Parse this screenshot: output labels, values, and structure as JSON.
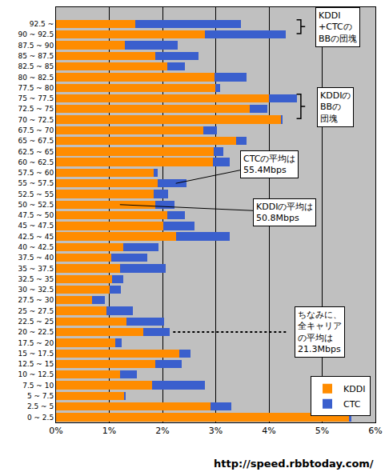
{
  "chart_data": {
    "type": "bar",
    "orientation": "horizontal",
    "stacked": true,
    "categories": [
      "0 ~ 2.5",
      "2.5 ~ 5",
      "5 ~ 7.5",
      "7.5 ~ 10",
      "10 ~ 12.5",
      "12.5 ~ 15",
      "15 ~ 17.5",
      "17.5 ~ 20",
      "20 ~ 22.5",
      "22.5 ~ 25",
      "25 ~ 27.5",
      "27.5 ~ 30",
      "30 ~ 32.5",
      "32.5 ~ 35",
      "35 ~ 37.5",
      "37.5 ~ 40",
      "40 ~ 42.5",
      "42.5 ~ 45",
      "45 ~ 47.5",
      "47.5 ~ 50",
      "50 ~ 52.5",
      "52.5 ~ 55",
      "55 ~ 57.5",
      "57.5 ~ 60",
      "60 ~ 62.5",
      "62.5 ~ 65",
      "65 ~ 67.5",
      "67.5 ~ 70",
      "70 ~ 72.5",
      "72.5 ~ 75",
      "75 ~ 77.5",
      "77.5 ~ 80",
      "80 ~ 82.5",
      "82.5 ~ 85",
      "85 ~ 87.5",
      "87.5 ~ 90",
      "90 ~ 92.5",
      "92.5 ~"
    ],
    "series": [
      {
        "name": "KDDI",
        "color": "#ff8c00",
        "values": [
          5.5,
          2.9,
          1.29,
          1.8,
          1.21,
          1.86,
          2.31,
          1.12,
          1.64,
          1.33,
          0.95,
          0.68,
          1.01,
          1.05,
          1.21,
          1.04,
          1.27,
          2.25,
          2.02,
          2.09,
          1.86,
          1.83,
          1.91,
          1.83,
          2.95,
          2.96,
          3.38,
          2.76,
          4.22,
          3.64,
          4.0,
          2.99,
          2.98,
          2.09,
          1.86,
          1.29,
          2.79,
          1.49
        ]
      },
      {
        "name": "CTC",
        "color": "#3a5fcd",
        "values": [
          0.05,
          0.4,
          0.01,
          1.0,
          0.31,
          0.5,
          0.22,
          0.12,
          0.5,
          0.7,
          0.5,
          0.23,
          0.21,
          0.22,
          0.85,
          0.67,
          0.65,
          1.02,
          0.58,
          0.33,
          0.37,
          0.28,
          0.54,
          0.08,
          0.31,
          0.19,
          0.2,
          0.26,
          0.03,
          0.33,
          0.53,
          0.1,
          0.6,
          0.33,
          0.82,
          0.99,
          1.52,
          1.98
        ]
      }
    ],
    "xlim": [
      0,
      6
    ],
    "xticks": [
      {
        "value": 0,
        "label": "0%"
      },
      {
        "value": 1,
        "label": "1%"
      },
      {
        "value": 2,
        "label": "2%"
      },
      {
        "value": 3,
        "label": "3%"
      },
      {
        "value": 4,
        "label": "4%"
      },
      {
        "value": 5,
        "label": "5%"
      },
      {
        "value": 6,
        "label": "6%"
      }
    ],
    "grid": true,
    "legend": "bottom right",
    "annotations": [
      "KDDI\n+CTCの\nBBの団塊",
      "KDDIの\nBBの\n団塊",
      "CTCの平均は\n55.4Mbps",
      "KDDIの平均は\n50.8Mbps",
      "ちなみに、\n全キャリア\nの平均は\n21.3Mbps",
      "http://speed.rbbtoday.com/"
    ]
  }
}
